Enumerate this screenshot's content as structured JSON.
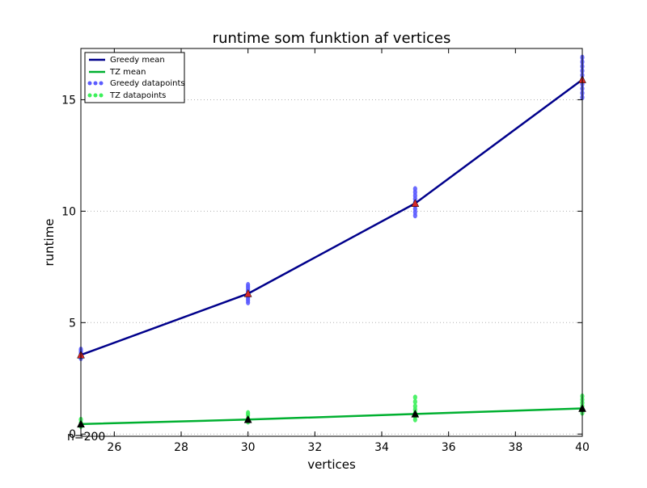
{
  "chart_data": {
    "type": "line",
    "title": "runtime som funktion af vertices",
    "xlabel": "vertices",
    "ylabel": "runtime",
    "xlim": [
      25,
      40
    ],
    "ylim": [
      -0.1,
      17.3
    ],
    "x_ticks": [
      26,
      28,
      30,
      32,
      34,
      36,
      38,
      40
    ],
    "x_tick_labels": [
      "26",
      "28",
      "30",
      "32",
      "34",
      "36",
      "38",
      "40"
    ],
    "y_ticks": [
      0,
      5,
      10,
      15
    ],
    "y_tick_labels": [
      "0",
      "5",
      "10",
      "15"
    ],
    "grid": "horizontal dotted",
    "legend_position": "top-left",
    "annotation": "n=200",
    "series": [
      {
        "name": "Greedy mean",
        "kind": "line",
        "color": "#00008b",
        "x": [
          25,
          30,
          35,
          40
        ],
        "values": [
          3.55,
          6.3,
          10.35,
          15.9
        ],
        "marker": "triangle",
        "marker_color": "#d62728"
      },
      {
        "name": "TZ mean",
        "kind": "line",
        "color": "#00b030",
        "x": [
          25,
          30,
          35,
          40
        ],
        "values": [
          0.45,
          0.65,
          0.9,
          1.15
        ],
        "marker": "triangle",
        "marker_color": "#000000"
      },
      {
        "name": "Greedy datapoints",
        "kind": "scatter",
        "color": "#5b5bff",
        "points": [
          [
            25,
            3.4
          ],
          [
            25,
            3.5
          ],
          [
            25,
            3.6
          ],
          [
            25,
            3.7
          ],
          [
            25,
            3.8
          ],
          [
            30,
            5.9
          ],
          [
            30,
            6.0
          ],
          [
            30,
            6.1
          ],
          [
            30,
            6.2
          ],
          [
            30,
            6.3
          ],
          [
            30,
            6.4
          ],
          [
            30,
            6.5
          ],
          [
            30,
            6.6
          ],
          [
            30,
            6.7
          ],
          [
            35,
            9.8
          ],
          [
            35,
            9.95
          ],
          [
            35,
            10.1
          ],
          [
            35,
            10.25
          ],
          [
            35,
            10.4
          ],
          [
            35,
            10.55
          ],
          [
            35,
            10.7
          ],
          [
            35,
            10.85
          ],
          [
            35,
            11.0
          ],
          [
            40,
            15.1
          ],
          [
            40,
            15.3
          ],
          [
            40,
            15.5
          ],
          [
            40,
            15.7
          ],
          [
            40,
            15.9
          ],
          [
            40,
            16.1
          ],
          [
            40,
            16.3
          ],
          [
            40,
            16.5
          ],
          [
            40,
            16.7
          ],
          [
            40,
            16.9
          ]
        ]
      },
      {
        "name": "TZ datapoints",
        "kind": "scatter",
        "color": "#3cf05a",
        "points": [
          [
            25,
            0.35
          ],
          [
            25,
            0.5
          ],
          [
            25,
            0.65
          ],
          [
            30,
            0.55
          ],
          [
            30,
            0.7
          ],
          [
            30,
            0.85
          ],
          [
            30,
            0.95
          ],
          [
            35,
            0.65
          ],
          [
            35,
            0.8
          ],
          [
            35,
            0.95
          ],
          [
            35,
            1.1
          ],
          [
            35,
            1.25
          ],
          [
            35,
            1.45
          ],
          [
            35,
            1.65
          ],
          [
            40,
            0.95
          ],
          [
            40,
            1.1
          ],
          [
            40,
            1.25
          ],
          [
            40,
            1.4
          ],
          [
            40,
            1.55
          ],
          [
            40,
            1.7
          ]
        ]
      }
    ]
  }
}
